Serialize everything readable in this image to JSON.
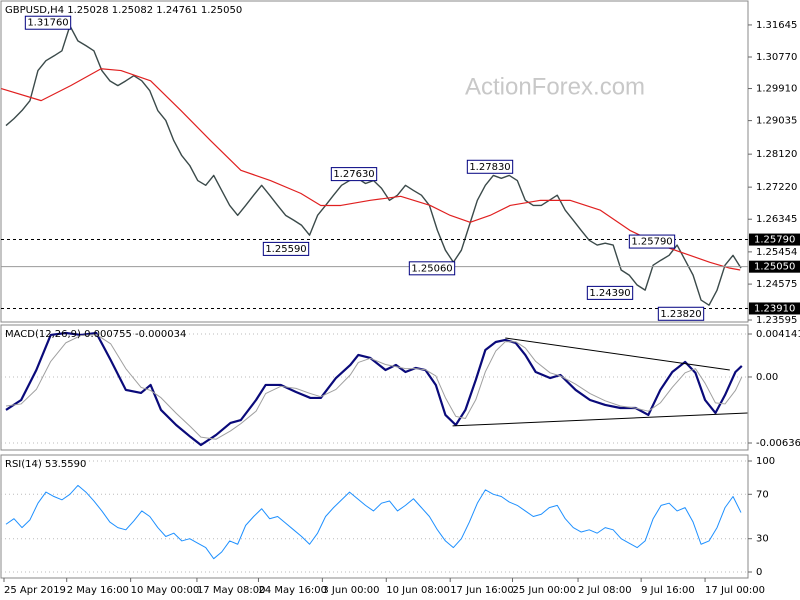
{
  "watermark": "ActionForex.com",
  "chart_data": [
    {
      "type": "line",
      "title": "GBPUSD,H4  1.25028 1.25082 1.24761 1.25050",
      "xlim": [
        -0.625,
        92.875
      ],
      "ylim": [
        1.23541,
        1.32298
      ],
      "yticks": [
        1.31645,
        {
          "value": 1.3077,
          "label": "1.30770"
        },
        {
          "value": 1.2991,
          "label": "1.29910"
        },
        1.29035,
        {
          "value": 1.2812,
          "label": "1.28120"
        },
        {
          "value": 1.2722,
          "label": "1.27220"
        },
        1.26345,
        1.25454,
        1.24575,
        1.23595
      ],
      "series": [
        {
          "color": "#3b4a4a",
          "width": 1.4,
          "values": [
            1.289,
            1.2909,
            1.2931,
            1.2958,
            1.304,
            1.3067,
            1.308,
            1.3094,
            1.3162,
            1.3121,
            1.3108,
            1.3094,
            1.304,
            1.3012,
            1.2999,
            1.3012,
            1.3026,
            1.3012,
            1.2985,
            1.2931,
            1.2904,
            1.2849,
            1.2808,
            1.2781,
            1.274,
            1.2727,
            1.2754,
            1.2713,
            1.2672,
            1.2645,
            1.2672,
            1.27,
            1.2727,
            1.27,
            1.2672,
            1.2645,
            1.2632,
            1.2618,
            1.2591,
            1.2645,
            1.2672,
            1.27,
            1.2727,
            1.274,
            1.2746,
            1.2732,
            1.274,
            1.2719,
            1.2686,
            1.27,
            1.2727,
            1.2713,
            1.27,
            1.2672,
            1.2604,
            1.255,
            1.2517,
            1.255,
            1.2618,
            1.2686,
            1.2727,
            1.2754,
            1.2746,
            1.2754,
            1.274,
            1.2686,
            1.2672,
            1.2672,
            1.2686,
            1.27,
            1.2659,
            1.2632,
            1.2604,
            1.2577,
            1.2564,
            1.2569,
            1.2564,
            1.2496,
            1.2482,
            1.2455,
            1.2441,
            1.2509,
            1.2523,
            1.2536,
            1.2564,
            1.2523,
            1.2482,
            1.2414,
            1.24,
            1.2441,
            1.2509,
            1.2536,
            1.2501
          ]
        },
        {
          "color": "#e02020",
          "width": 1.2,
          "x": [
            -0.6,
            4.4,
            8.1,
            11.9,
            14.4,
            18.1,
            21.9,
            25.6,
            29.4,
            33.1,
            36.9,
            39.4,
            41.9,
            45.6,
            49.4,
            53.1,
            55.6,
            58.1,
            60.6,
            63.1,
            66.9,
            70.6,
            74.4,
            78.1,
            81.9,
            85.6,
            88.1,
            90.6,
            91.9
          ],
          "values": [
            1.2991,
            1.2958,
            1.2999,
            1.3045,
            1.304,
            1.3012,
            1.2931,
            1.2849,
            1.2768,
            1.274,
            1.2705,
            1.2672,
            1.2672,
            1.2686,
            1.2697,
            1.2672,
            1.2645,
            1.2626,
            1.2645,
            1.2672,
            1.2686,
            1.2686,
            1.2659,
            1.2604,
            1.2564,
            1.2536,
            1.2517,
            1.2501,
            1.2496
          ]
        }
      ],
      "levels": [
        {
          "value": 1.2579,
          "label": "1.25790",
          "style": "dashed"
        },
        {
          "value": 1.2505,
          "label": "1.25050",
          "style": "solid"
        },
        {
          "value": 1.2391,
          "label": "1.23910",
          "style": "dashed"
        }
      ],
      "annotations": [
        {
          "value": 1.3176,
          "label": "1.31760"
        },
        {
          "value": 1.2763,
          "label": "1.27630"
        },
        {
          "value": 1.2559,
          "label": "1.25590"
        },
        {
          "value": 1.2506,
          "label": "1.25060"
        },
        {
          "value": 1.2783,
          "label": "1.27830"
        },
        {
          "value": 1.2579,
          "label": "1.25790"
        },
        {
          "value": 1.2439,
          "label": "1.24390"
        },
        {
          "value": 1.2382,
          "label": "1.23820"
        }
      ]
    },
    {
      "type": "line",
      "title": "MACD(12,26,9) 0.000755 -0.000034",
      "xlim": [
        -0.625,
        92.875
      ],
      "ylim": [
        -0.00704,
        0.00501
      ],
      "grid": true,
      "yticks": [
        0.004141,
        {
          "value": 0,
          "label": "0.00"
        },
        -0.006365
      ],
      "series": [
        {
          "color": "#0a0a7a",
          "width": 2.2,
          "x": [
            0,
            1.9,
            3.8,
            5.6,
            7.5,
            9.4,
            11.3,
            13.1,
            15,
            16.9,
            18.1,
            19.4,
            21.3,
            23.1,
            24.4,
            26.3,
            28.1,
            29.4,
            31.3,
            32.5,
            34.4,
            36.3,
            38.1,
            39.4,
            41.3,
            43.1,
            44.1,
            45.6,
            47.5,
            48.8,
            50,
            51.3,
            52.5,
            53.8,
            55,
            56.3,
            57.5,
            58.8,
            60,
            61.3,
            62.5,
            63.8,
            65,
            66.3,
            68.1,
            69.4,
            71.3,
            73.1,
            75,
            76.9,
            78.8,
            80.4,
            81.9,
            83.4,
            85,
            86.3,
            87.5,
            88.8,
            90,
            91.3,
            92.1
          ],
          "values": [
            -0.00318,
            -0.00222,
            0.00067,
            0.00405,
            0.00424,
            0.00405,
            0.00424,
            0.00164,
            -0.00125,
            -0.00154,
            -0.00077,
            -0.00318,
            -0.00463,
            -0.00578,
            -0.00656,
            -0.00559,
            -0.00443,
            -0.00415,
            -0.00222,
            -0.00077,
            -0.00077,
            -0.00145,
            -0.00202,
            -0.00202,
            -0.0001,
            0.00116,
            0.00212,
            0.00183,
            0.00067,
            0.00116,
            0.00048,
            0.00087,
            0.00067,
            -0.00077,
            -0.00366,
            -0.00463,
            -0.00318,
            -0.00029,
            0.0026,
            0.00337,
            0.00357,
            0.00328,
            0.00212,
            0.00048,
            -0.0001,
            0.00019,
            -0.00125,
            -0.00222,
            -0.0027,
            -0.00299,
            -0.00299,
            -0.00366,
            -0.00125,
            0.00048,
            0.00145,
            0.00039,
            -0.00222,
            -0.00347,
            -0.00174,
            0.00048,
            0.00106
          ]
        },
        {
          "color": "#a0a0a0",
          "width": 1,
          "x": [
            0,
            1.9,
            3.8,
            5.6,
            7.5,
            9.4,
            11.3,
            13.1,
            15,
            16.9,
            18.1,
            19.4,
            21.3,
            23.1,
            24.4,
            26.3,
            28.1,
            29.4,
            31.3,
            32.5,
            34.4,
            36.3,
            38.1,
            39.4,
            41.3,
            43.1,
            44.1,
            45.6,
            47.5,
            48.8,
            50,
            51.3,
            52.5,
            53.8,
            55,
            56.3,
            57.5,
            58.8,
            60,
            61.3,
            62.5,
            63.8,
            65,
            66.3,
            68.1,
            69.4,
            71.3,
            73.1,
            75,
            76.9,
            78.8,
            80.4,
            81.9,
            83.4,
            85,
            86.3,
            87.5,
            88.8,
            90,
            91.3,
            92.1
          ],
          "values": [
            -0.0028,
            -0.0026,
            -0.0012,
            0.0015,
            0.0033,
            0.004,
            0.0041,
            0.0032,
            0.0008,
            -0.001,
            -0.0013,
            -0.002,
            -0.0035,
            -0.0048,
            -0.0058,
            -0.006,
            -0.0052,
            -0.0045,
            -0.0033,
            -0.0016,
            -0.0009,
            -0.0011,
            -0.0016,
            -0.0019,
            -0.0012,
            0.0002,
            0.0014,
            0.0018,
            0.0012,
            0.001,
            0.0008,
            0.0008,
            0.0007,
            0.0001,
            -0.002,
            -0.0038,
            -0.004,
            -0.0022,
            0.0005,
            0.0025,
            0.0034,
            0.0034,
            0.0028,
            0.0015,
            0.0004,
            0.0001,
            -0.0007,
            -0.0016,
            -0.0023,
            -0.0028,
            -0.003,
            -0.0033,
            -0.0025,
            -0.001,
            0.0004,
            0.0008,
            -0.0006,
            -0.0025,
            -0.0026,
            -0.0013,
            0.0
          ]
        }
      ],
      "trendlines": [
        {
          "x": [
            62.5,
            90.6
          ],
          "values": [
            0.00376,
            0.00067
          ]
        },
        {
          "x": [
            55.9,
            92.8
          ],
          "values": [
            -0.00472,
            -0.00347
          ]
        }
      ]
    },
    {
      "type": "line",
      "title": "RSI(14) 53.5590",
      "xlim": [
        -0.625,
        92.875
      ],
      "ylim": [
        -5.4,
        105.4
      ],
      "grid": true,
      "yticks": [
        100,
        70,
        30,
        0
      ],
      "series": [
        {
          "color": "#1e90ff",
          "width": 1,
          "values": [
            43,
            48,
            40,
            47,
            62,
            72,
            68,
            65,
            70,
            78,
            72,
            64,
            55,
            45,
            40,
            38,
            46,
            55,
            50,
            40,
            32,
            35,
            28,
            30,
            26,
            22,
            12,
            18,
            28,
            25,
            42,
            50,
            57,
            48,
            50,
            44,
            38,
            32,
            25,
            35,
            50,
            58,
            65,
            72,
            66,
            60,
            55,
            62,
            64,
            55,
            60,
            66,
            58,
            50,
            38,
            28,
            22,
            30,
            45,
            62,
            74,
            70,
            68,
            63,
            60,
            55,
            50,
            52,
            58,
            60,
            48,
            40,
            36,
            38,
            35,
            40,
            38,
            30,
            26,
            22,
            28,
            48,
            60,
            62,
            55,
            58,
            45,
            25,
            28,
            40,
            58,
            68,
            53.559
          ]
        }
      ],
      "xticks": [
        {
          "value": -0.25,
          "label": "25 Apr 2019"
        },
        {
          "value": 7.6,
          "label": "2 May 16:00"
        },
        {
          "value": 15.6,
          "label": "10 May 00:00"
        },
        {
          "value": 23.9,
          "label": "17 May 08:00"
        },
        {
          "value": 31.6,
          "label": "24 May 16:00"
        },
        {
          "value": 39.6,
          "label": "3 Jun 00:00"
        },
        {
          "value": 47.6,
          "label": "10 Jun 08:00"
        },
        {
          "value": 55.6,
          "label": "17 Jun 16:00"
        },
        {
          "value": 63.4,
          "label": "25 Jun 00:00"
        },
        {
          "value": 71.6,
          "label": "2 Jul 08:00"
        },
        {
          "value": 79.5,
          "label": "9 Jul 16:00"
        },
        {
          "value": 87.5,
          "label": "17 Jul 00:00"
        }
      ]
    }
  ]
}
